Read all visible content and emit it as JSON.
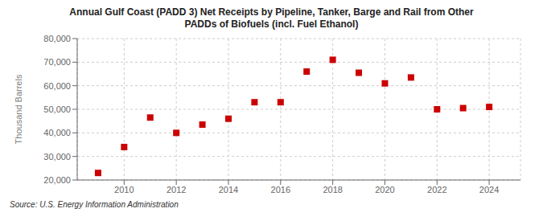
{
  "chart_data": {
    "type": "scatter",
    "title": "Annual Gulf Coast (PADD 3) Net Receipts by Pipeline, Tanker, Barge and Rail from Other\nPADDs of Biofuels (incl. Fuel Ethanol)",
    "y_label": "Thousand Barrels",
    "annotations": [
      "Source: U.S. Energy Information Administration"
    ],
    "x": [
      2009,
      2010,
      2011,
      2012,
      2013,
      2014,
      2015,
      2016,
      2017,
      2018,
      2019,
      2020,
      2021,
      2022,
      2023,
      2024
    ],
    "values": [
      23000,
      34000,
      46500,
      40000,
      43500,
      46000,
      53000,
      53000,
      66000,
      71000,
      65500,
      61000,
      63500,
      50000,
      50500,
      51000
    ],
    "color": "#cc0000",
    "marker": "square",
    "xlim": [
      2008.2,
      2025.2
    ],
    "xticks": [
      2010,
      2012,
      2014,
      2016,
      2018,
      2020,
      2022,
      2024
    ],
    "ylim": [
      20000,
      80000
    ],
    "yticks": [
      {
        "value": 20000,
        "label": "20,000"
      },
      {
        "value": 30000,
        "label": "30,000"
      },
      {
        "value": 40000,
        "label": "40,000"
      },
      {
        "value": 50000,
        "label": "50,000"
      },
      {
        "value": 60000,
        "label": "60,000"
      },
      {
        "value": 70000,
        "label": "70,000"
      },
      {
        "value": 80000,
        "label": "80,000"
      }
    ],
    "grid": true
  }
}
